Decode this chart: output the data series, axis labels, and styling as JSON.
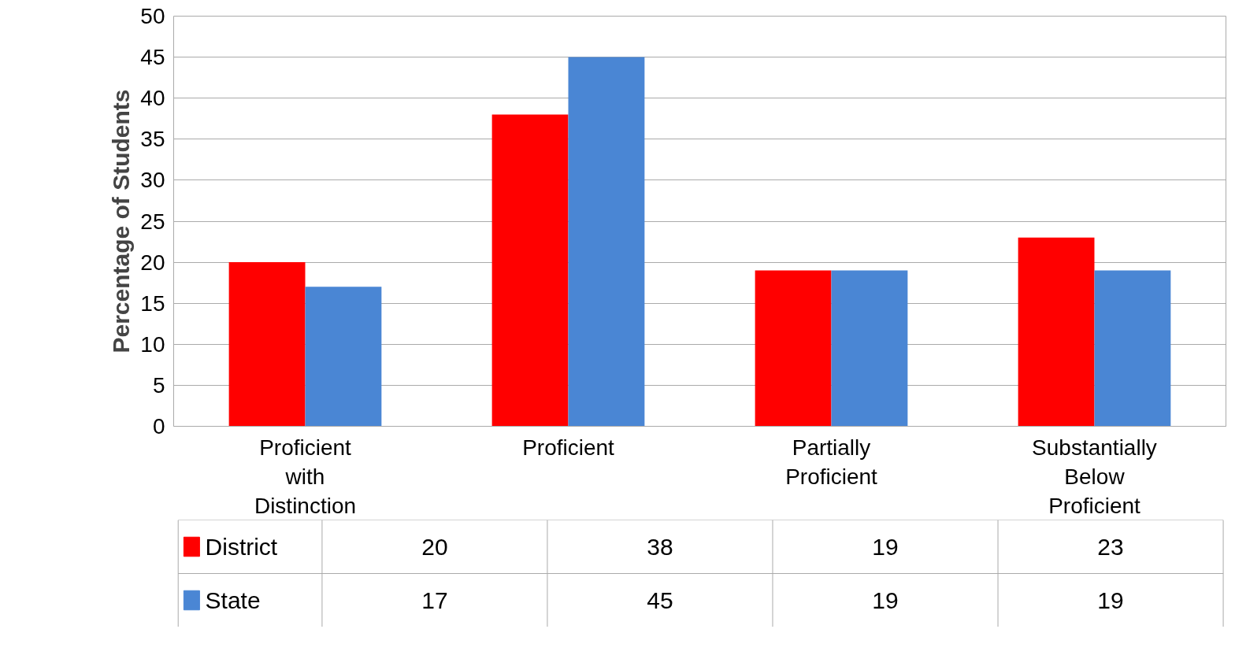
{
  "chart_data": {
    "type": "bar",
    "ylabel": "Percentage of Students",
    "categories": [
      "Proficient with Distinction",
      "Proficient",
      "Partially Proficient",
      "Substantially Below Proficient"
    ],
    "series": [
      {
        "name": "District",
        "color": "#ff0000",
        "values": [
          20,
          38,
          19,
          23
        ]
      },
      {
        "name": "State",
        "color": "#4a86d4",
        "values": [
          17,
          45,
          19,
          19
        ]
      }
    ],
    "ylim": [
      0,
      50
    ],
    "yticks": [
      0,
      5,
      10,
      15,
      20,
      25,
      30,
      35,
      40,
      45,
      50
    ],
    "grid": "y",
    "legend": "bottom",
    "data_labels": true
  }
}
